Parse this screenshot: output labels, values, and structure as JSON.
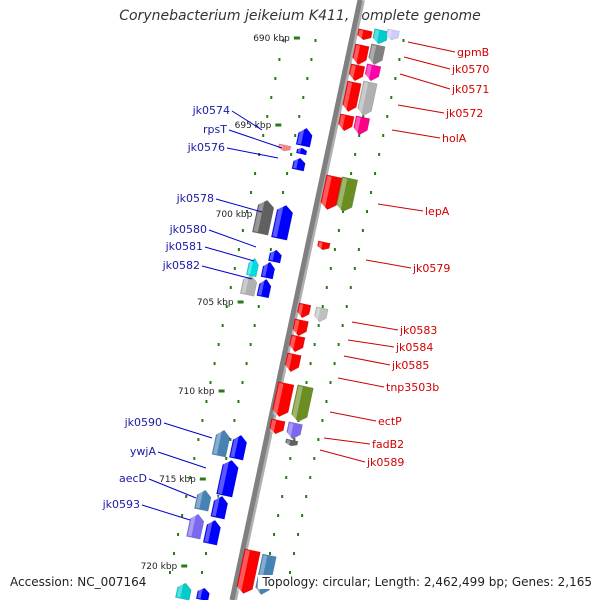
{
  "title": "Corynebacterium jeikeium K411, complete genome",
  "footer": {
    "accession": "Accession: NC_007164",
    "summary": "Topology: circular; Length: 2,462,499 bp; Genes: 2,165"
  },
  "colors": {
    "forward_label": "#d40000",
    "reverse_label": "#1a1aa6",
    "forward_gene": "#ff0000",
    "reverse_gene": "#0000ff",
    "backbone": "#808080",
    "tick": "#2a7a1a"
  },
  "ticks": [
    "690 kbp",
    "695 kbp",
    "700 kbp",
    "705 kbp",
    "710 kbp",
    "715 kbp",
    "720 kbp"
  ],
  "reverse_labels": [
    "jk0574",
    "rpsT",
    "jk0576",
    "jk0578",
    "jk0580",
    "jk0581",
    "jk0582",
    "jk0590",
    "ywjA",
    "aecD",
    "jk0593"
  ],
  "forward_labels": [
    "gpmB",
    "jk0570",
    "jk0571",
    "jk0572",
    "holA",
    "lepA",
    "jk0579",
    "jk0583",
    "jk0584",
    "jk0585",
    "tnp3503b",
    "ectP",
    "fadB2",
    "jk0589"
  ]
}
